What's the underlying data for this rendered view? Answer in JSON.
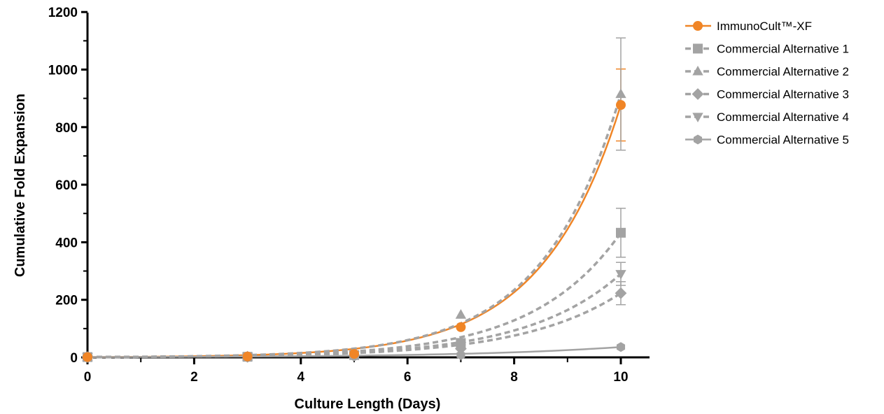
{
  "chart_data": {
    "type": "line",
    "xlabel": "Culture Length (Days)",
    "ylabel": "Cumulative Fold Expansion",
    "xlim": [
      0,
      10.5
    ],
    "ylim": [
      0,
      1200
    ],
    "xticks": [
      "0",
      "2",
      "4",
      "6",
      "8",
      "10"
    ],
    "yticks": [
      "0",
      "200",
      "400",
      "600",
      "800",
      "1000",
      "1200"
    ],
    "grid": false,
    "legend": "top-right",
    "x": [
      0,
      3,
      5,
      7,
      10
    ],
    "series": [
      {
        "name": "ImmunoCult™-XF",
        "color": "#f08526",
        "marker": "circle",
        "line": "solid",
        "values": [
          1,
          3,
          12,
          105,
          877
        ],
        "error": [
          0,
          0,
          0,
          0,
          125
        ]
      },
      {
        "name": "Commercial Alternative 1",
        "color": "#a3a3a3",
        "marker": "square",
        "line": "dashed",
        "values": [
          1,
          2,
          8,
          50,
          433
        ],
        "error": [
          0,
          0,
          0,
          0,
          85
        ]
      },
      {
        "name": "Commercial Alternative 2",
        "color": "#a3a3a3",
        "marker": "triangle-up",
        "line": "dashed",
        "values": [
          1,
          3,
          10,
          148,
          915
        ],
        "error": [
          0,
          0,
          0,
          0,
          195
        ]
      },
      {
        "name": "Commercial Alternative 3",
        "color": "#a3a3a3",
        "marker": "diamond",
        "line": "dashed",
        "values": [
          1,
          2,
          6,
          30,
          223
        ],
        "error": [
          0,
          0,
          0,
          0,
          40
        ]
      },
      {
        "name": "Commercial Alternative 4",
        "color": "#a3a3a3",
        "marker": "triangle-down",
        "line": "dashed",
        "values": [
          1,
          2,
          7,
          40,
          290
        ],
        "error": [
          0,
          0,
          0,
          0,
          40
        ]
      },
      {
        "name": "Commercial Alternative 5",
        "color": "#a3a3a3",
        "marker": "hexagon",
        "line": "solid",
        "values": [
          1,
          1,
          3,
          8,
          36
        ],
        "error": [
          0,
          0,
          0,
          0,
          0
        ]
      }
    ]
  }
}
